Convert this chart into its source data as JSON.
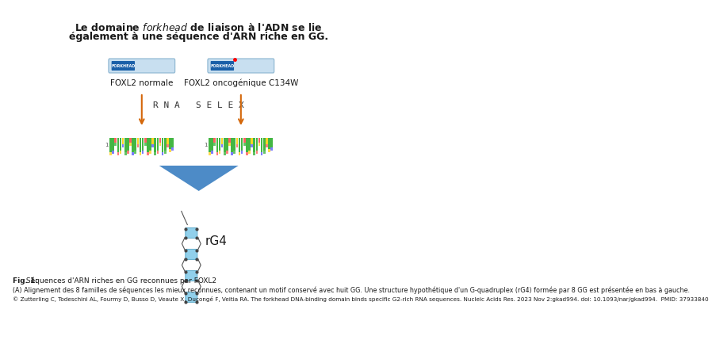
{
  "title_line1": "Le domaine ",
  "title_italic": "forkhead",
  "title_line1b": " de liaison à l'ADN se lie",
  "title_line2": "également à une séquence d'ARN riche en GG.",
  "label_foxl2_normal": "FOXL2 normale",
  "label_foxl2_onco": "FOXL2 oncogénique C134W",
  "label_rna_selex": "R N A   S E L E X",
  "label_rg4": "rG4",
  "fig_label": "Fig. 1:",
  "fig_caption": " Séquences d'ARN riches en GG reconnues par FOXL2",
  "body_text": "(A) Alignement des 8 familles de séquences les mieux reconnues, contenant un motif conservé avec huit GG. Une structure hypothétique d'un G-quadruplex (rG4) formée par 8 GG est présentée en bas à gauche.",
  "citation": "© Zutterling C, Todeschini AL, Fourmy D, Busso D, Veaute X, Ducongé F, Veitia RA. The forkhead DNA-binding domain binds specific G2-rich RNA sequences. Nucleic Acids Res. 2023 Nov 2:gkad994. doi: 10.1093/nar/gkad994.  PMID: 37933840",
  "bg_color": "#ffffff",
  "protein_bar_bg": "#c8dff0",
  "protein_bar_domain": "#1a5fa8",
  "protein_bar_domain2": "#2271b3",
  "arrow_color": "#d4670a",
  "arrow_blue": "#2e7fc1",
  "seqlogo_colors": [
    "#22aa22",
    "#ffcc00",
    "#ff4444",
    "#4444ff"
  ],
  "rg4_color": "#7ec8e8"
}
